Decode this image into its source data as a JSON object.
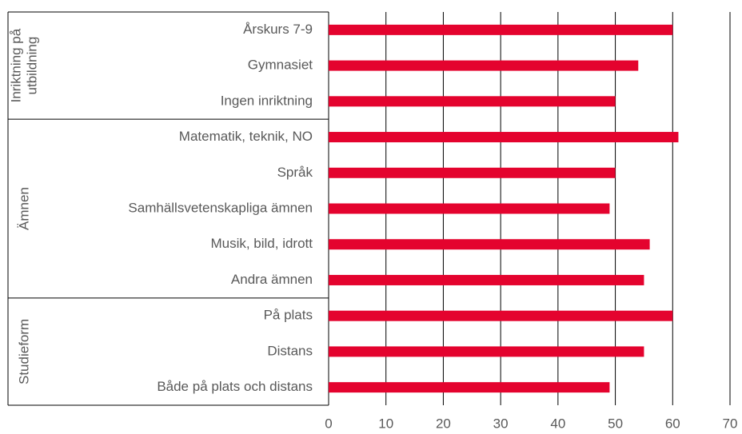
{
  "chart_data": {
    "type": "bar",
    "orientation": "horizontal",
    "color": "#e4032e",
    "grid": true,
    "groups": [
      {
        "name_lines": [
          "Inriktning på",
          "utbildning"
        ],
        "categories": [
          "Årskurs 7-9",
          "Gymnasiet",
          "Ingen inriktning"
        ],
        "values": [
          60,
          54,
          50
        ]
      },
      {
        "name_lines": [
          "Ämnen"
        ],
        "categories": [
          "Matematik, teknik, NO",
          "Språk",
          "Samhällsvetenskapliga ämnen",
          "Musik, bild, idrott",
          "Andra ämnen"
        ],
        "values": [
          61,
          50,
          49,
          56,
          55
        ]
      },
      {
        "name_lines": [
          "Studieform"
        ],
        "categories": [
          "På plats",
          "Distans",
          "Både på plats och distans"
        ],
        "values": [
          60,
          55,
          49
        ]
      }
    ],
    "xlim": [
      0,
      70
    ],
    "xticks": [
      0,
      10,
      20,
      30,
      40,
      50,
      60,
      70
    ]
  }
}
